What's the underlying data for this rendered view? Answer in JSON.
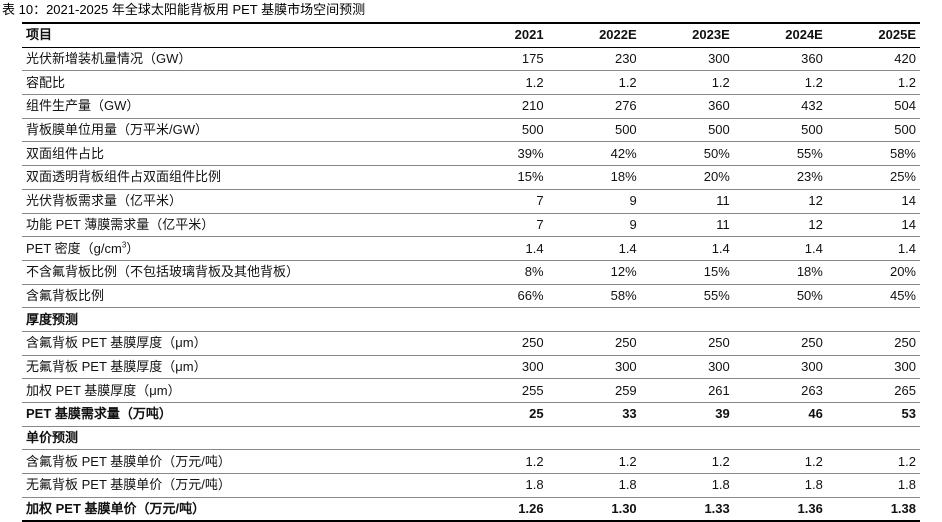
{
  "title": "表 10：2021-2025 年全球太阳能背板用 PET 基膜市场空间预测",
  "header": [
    "项目",
    "2021",
    "2022E",
    "2023E",
    "2024E",
    "2025E"
  ],
  "rows": [
    {
      "label": "光伏新增装机量情况（GW）",
      "values": [
        "175",
        "230",
        "300",
        "360",
        "420"
      ]
    },
    {
      "label": "容配比",
      "values": [
        "1.2",
        "1.2",
        "1.2",
        "1.2",
        "1.2"
      ]
    },
    {
      "label": "组件生产量（GW）",
      "values": [
        "210",
        "276",
        "360",
        "432",
        "504"
      ]
    },
    {
      "label": "背板膜单位用量（万平米/GW）",
      "values": [
        "500",
        "500",
        "500",
        "500",
        "500"
      ]
    },
    {
      "label": "双面组件占比",
      "values": [
        "39%",
        "42%",
        "50%",
        "55%",
        "58%"
      ]
    },
    {
      "label": "双面透明背板组件占双面组件比例",
      "values": [
        "15%",
        "18%",
        "20%",
        "23%",
        "25%"
      ]
    },
    {
      "label": "光伏背板需求量（亿平米）",
      "values": [
        "7",
        "9",
        "11",
        "12",
        "14"
      ]
    },
    {
      "label": "功能 PET 薄膜需求量（亿平米）",
      "values": [
        "7",
        "9",
        "11",
        "12",
        "14"
      ]
    },
    {
      "label_prefix": "PET 密度（g/cm",
      "label_sup": "3",
      "label_suffix": "）",
      "values": [
        "1.4",
        "1.4",
        "1.4",
        "1.4",
        "1.4"
      ]
    },
    {
      "label": "不含氟背板比例（不包括玻璃背板及其他背板）",
      "values": [
        "8%",
        "12%",
        "15%",
        "18%",
        "20%"
      ]
    },
    {
      "label": "含氟背板比例",
      "values": [
        "66%",
        "58%",
        "55%",
        "50%",
        "45%"
      ]
    },
    {
      "label": "厚度预测",
      "values": [
        "",
        "",
        "",
        "",
        ""
      ]
    },
    {
      "label": "含氟背板 PET 基膜厚度（μm）",
      "values": [
        "250",
        "250",
        "250",
        "250",
        "250"
      ]
    },
    {
      "label": "无氟背板 PET 基膜厚度（μm）",
      "values": [
        "300",
        "300",
        "300",
        "300",
        "300"
      ]
    },
    {
      "label": "加权 PET 基膜厚度（μm）",
      "values": [
        "255",
        "259",
        "261",
        "263",
        "265"
      ]
    },
    {
      "label": "PET 基膜需求量（万吨）",
      "values": [
        "25",
        "33",
        "39",
        "46",
        "53"
      ]
    },
    {
      "label": "单价预测",
      "values": [
        "",
        "",
        "",
        "",
        ""
      ]
    },
    {
      "label": "含氟背板 PET 基膜单价（万元/吨）",
      "values": [
        "1.2",
        "1.2",
        "1.2",
        "1.2",
        "1.2"
      ]
    },
    {
      "label": "无氟背板 PET 基膜单价（万元/吨）",
      "values": [
        "1.8",
        "1.8",
        "1.8",
        "1.8",
        "1.8"
      ]
    },
    {
      "label": "加权 PET 基膜单价（万元/吨）",
      "values": [
        "1.26",
        "1.30",
        "1.33",
        "1.36",
        "1.38"
      ]
    }
  ]
}
